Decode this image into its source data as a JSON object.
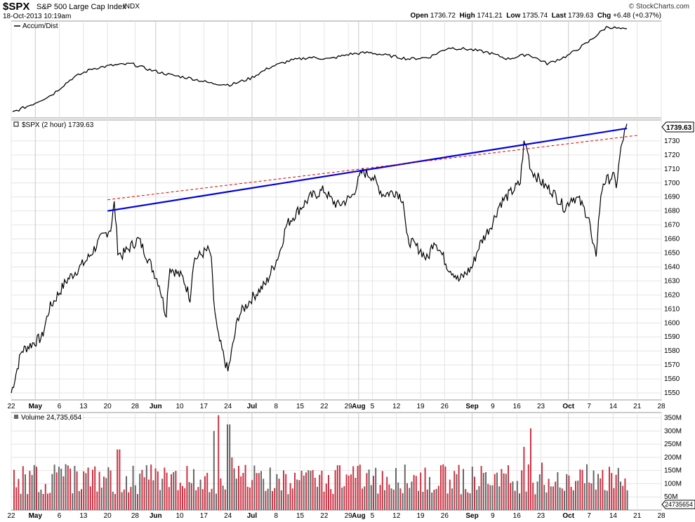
{
  "header": {
    "symbol": "$SPX",
    "name": "S&P 500 Large Cap Index",
    "exchange": "INDX",
    "datetime": "18-Oct-2013 10:19am",
    "brand": "© StockCharts.com",
    "open_label": "Open",
    "open": "1736.72",
    "high_label": "High",
    "high": "1741.21",
    "low_label": "Low",
    "low": "1735.74",
    "last_label": "Last",
    "last": "1739.63",
    "chg_label": "Chg",
    "chg": "+6.48 (+0.37%)"
  },
  "panels": {
    "accum_legend": "Accum/Dist",
    "price_legend": "$SPX (2 hour) 1739.63",
    "price_tag": "1739.63",
    "volume_legend": "Volume 24,735,654",
    "volume_tag": "24735654"
  },
  "chart_data": {
    "type": "line",
    "price_axis": {
      "ylim": [
        1545,
        1745
      ],
      "ticks": [
        1550,
        1560,
        1570,
        1580,
        1590,
        1600,
        1610,
        1620,
        1630,
        1640,
        1650,
        1660,
        1670,
        1680,
        1690,
        1700,
        1710,
        1720,
        1730
      ]
    },
    "volume_axis": {
      "ylim": [
        0,
        370
      ],
      "ticks": [
        50,
        100,
        150,
        200,
        250,
        300,
        350
      ],
      "tick_labels": [
        "50M",
        "100M",
        "150M",
        "200M",
        "250M",
        "300M",
        "350M"
      ]
    },
    "x_axis": {
      "start": "2013-04-22",
      "end": "2013-10-28",
      "labels": [
        {
          "text": "22",
          "date": "2013-04-22",
          "bold": false
        },
        {
          "text": "May",
          "date": "2013-04-29",
          "bold": true
        },
        {
          "text": "6",
          "date": "2013-05-06",
          "bold": false
        },
        {
          "text": "13",
          "date": "2013-05-13",
          "bold": false
        },
        {
          "text": "20",
          "date": "2013-05-20",
          "bold": false
        },
        {
          "text": "28",
          "date": "2013-05-28",
          "bold": false
        },
        {
          "text": "Jun",
          "date": "2013-06-03",
          "bold": true
        },
        {
          "text": "10",
          "date": "2013-06-10",
          "bold": false
        },
        {
          "text": "17",
          "date": "2013-06-17",
          "bold": false
        },
        {
          "text": "24",
          "date": "2013-06-24",
          "bold": false
        },
        {
          "text": "Jul",
          "date": "2013-07-01",
          "bold": true
        },
        {
          "text": "8",
          "date": "2013-07-08",
          "bold": false
        },
        {
          "text": "15",
          "date": "2013-07-15",
          "bold": false
        },
        {
          "text": "22",
          "date": "2013-07-22",
          "bold": false
        },
        {
          "text": "29",
          "date": "2013-07-29",
          "bold": false
        },
        {
          "text": "Aug",
          "date": "2013-08-01",
          "bold": true
        },
        {
          "text": "5",
          "date": "2013-08-05",
          "bold": false
        },
        {
          "text": "12",
          "date": "2013-08-12",
          "bold": false
        },
        {
          "text": "19",
          "date": "2013-08-19",
          "bold": false
        },
        {
          "text": "26",
          "date": "2013-08-26",
          "bold": false
        },
        {
          "text": "Sep",
          "date": "2013-09-03",
          "bold": true
        },
        {
          "text": "9",
          "date": "2013-09-09",
          "bold": false
        },
        {
          "text": "16",
          "date": "2013-09-16",
          "bold": false
        },
        {
          "text": "23",
          "date": "2013-09-23",
          "bold": false
        },
        {
          "text": "Oct",
          "date": "2013-10-01",
          "bold": true
        },
        {
          "text": "7",
          "date": "2013-10-07",
          "bold": false
        },
        {
          "text": "14",
          "date": "2013-10-14",
          "bold": false
        },
        {
          "text": "21",
          "date": "2013-10-21",
          "bold": false
        },
        {
          "text": "28",
          "date": "2013-10-28",
          "bold": false
        }
      ]
    },
    "price_series": {
      "name": "$SPX (2 hour)",
      "color": "#000000",
      "points": [
        [
          "2013-04-22",
          1550
        ],
        [
          "2013-04-25",
          1580
        ],
        [
          "2013-05-01",
          1590
        ],
        [
          "2013-05-03",
          1610
        ],
        [
          "2013-05-08",
          1630
        ],
        [
          "2013-05-14",
          1645
        ],
        [
          "2013-05-18",
          1660
        ],
        [
          "2013-05-21",
          1668
        ],
        [
          "2013-05-22",
          1686
        ],
        [
          "2013-05-23",
          1652
        ],
        [
          "2013-05-24",
          1648
        ],
        [
          "2013-05-29",
          1660
        ],
        [
          "2013-05-31",
          1650
        ],
        [
          "2013-06-04",
          1628
        ],
        [
          "2013-06-06",
          1605
        ],
        [
          "2013-06-07",
          1640
        ],
        [
          "2013-06-11",
          1632
        ],
        [
          "2013-06-13",
          1618
        ],
        [
          "2013-06-14",
          1645
        ],
        [
          "2013-06-18",
          1652
        ],
        [
          "2013-06-19",
          1650
        ],
        [
          "2013-06-20",
          1612
        ],
        [
          "2013-06-21",
          1592
        ],
        [
          "2013-06-24",
          1565
        ],
        [
          "2013-06-25",
          1578
        ],
        [
          "2013-06-27",
          1605
        ],
        [
          "2013-07-01",
          1618
        ],
        [
          "2013-07-05",
          1628
        ],
        [
          "2013-07-09",
          1650
        ],
        [
          "2013-07-11",
          1670
        ],
        [
          "2013-07-15",
          1682
        ],
        [
          "2013-07-18",
          1690
        ],
        [
          "2013-07-22",
          1695
        ],
        [
          "2013-07-24",
          1688
        ],
        [
          "2013-07-26",
          1684
        ],
        [
          "2013-07-30",
          1690
        ],
        [
          "2013-08-02",
          1708
        ],
        [
          "2013-08-05",
          1705
        ],
        [
          "2013-08-06",
          1700
        ],
        [
          "2013-08-08",
          1692
        ],
        [
          "2013-08-12",
          1694
        ],
        [
          "2013-08-14",
          1688
        ],
        [
          "2013-08-15",
          1660
        ],
        [
          "2013-08-19",
          1652
        ],
        [
          "2013-08-21",
          1645
        ],
        [
          "2013-08-23",
          1660
        ],
        [
          "2013-08-27",
          1640
        ],
        [
          "2013-08-29",
          1635
        ],
        [
          "2013-08-30",
          1630
        ],
        [
          "2013-09-03",
          1640
        ],
        [
          "2013-09-05",
          1655
        ],
        [
          "2013-09-09",
          1672
        ],
        [
          "2013-09-11",
          1685
        ],
        [
          "2013-09-13",
          1690
        ],
        [
          "2013-09-17",
          1700
        ],
        [
          "2013-09-18",
          1728
        ],
        [
          "2013-09-19",
          1725
        ],
        [
          "2013-09-20",
          1710
        ],
        [
          "2013-09-24",
          1698
        ],
        [
          "2013-09-26",
          1695
        ],
        [
          "2013-09-30",
          1682
        ],
        [
          "2013-10-02",
          1690
        ],
        [
          "2013-10-04",
          1688
        ],
        [
          "2013-10-07",
          1675
        ],
        [
          "2013-10-08",
          1655
        ],
        [
          "2013-10-09",
          1648
        ],
        [
          "2013-10-10",
          1680
        ],
        [
          "2013-10-11",
          1700
        ],
        [
          "2013-10-14",
          1705
        ],
        [
          "2013-10-15",
          1698
        ],
        [
          "2013-10-16",
          1720
        ],
        [
          "2013-10-17",
          1733
        ],
        [
          "2013-10-18",
          1739.63
        ]
      ]
    },
    "accum_dist_series": {
      "name": "Accum/Dist",
      "color": "#000000",
      "values": [
        -2.1,
        -1.6,
        -1.0,
        0.0,
        0.6,
        0.8,
        0.9,
        0.5,
        0.2,
        0.0,
        -0.3,
        -0.4,
        0.0,
        0.7,
        1.1,
        1.3,
        1.2,
        1.5,
        1.6,
        1.4,
        1.2,
        1.3,
        1.9,
        1.8,
        1.6,
        1.2,
        1.5,
        0.9,
        1.4,
        2.2,
        3.2,
        3.0
      ]
    },
    "trendlines": [
      {
        "name": "resistance",
        "color": "#0000dd",
        "style": "solid",
        "from": [
          "2013-05-20",
          1680
        ],
        "to": [
          "2013-10-18",
          1739
        ]
      },
      {
        "name": "channel",
        "color": "#dd0000",
        "style": "dashed",
        "from": [
          "2013-05-20",
          1688
        ],
        "to": [
          "2013-10-21",
          1734
        ]
      }
    ],
    "volume_series": {
      "name": "Volume",
      "up_color": "#666666",
      "down_color": "#cc3344",
      "spikes": [
        [
          "2013-05-21",
          150
        ],
        [
          "2013-05-23",
          230
        ],
        [
          "2013-06-20",
          300
        ],
        [
          "2013-06-21",
          360
        ],
        [
          "2013-06-24",
          325
        ],
        [
          "2013-06-25",
          200
        ],
        [
          "2013-07-26",
          170
        ],
        [
          "2013-09-18",
          240
        ],
        [
          "2013-09-20",
          310
        ],
        [
          "2013-09-23",
          180
        ],
        [
          "2013-10-08",
          150
        ],
        [
          "2013-10-15",
          160
        ]
      ],
      "base_min": 60,
      "base_max": 175
    }
  }
}
